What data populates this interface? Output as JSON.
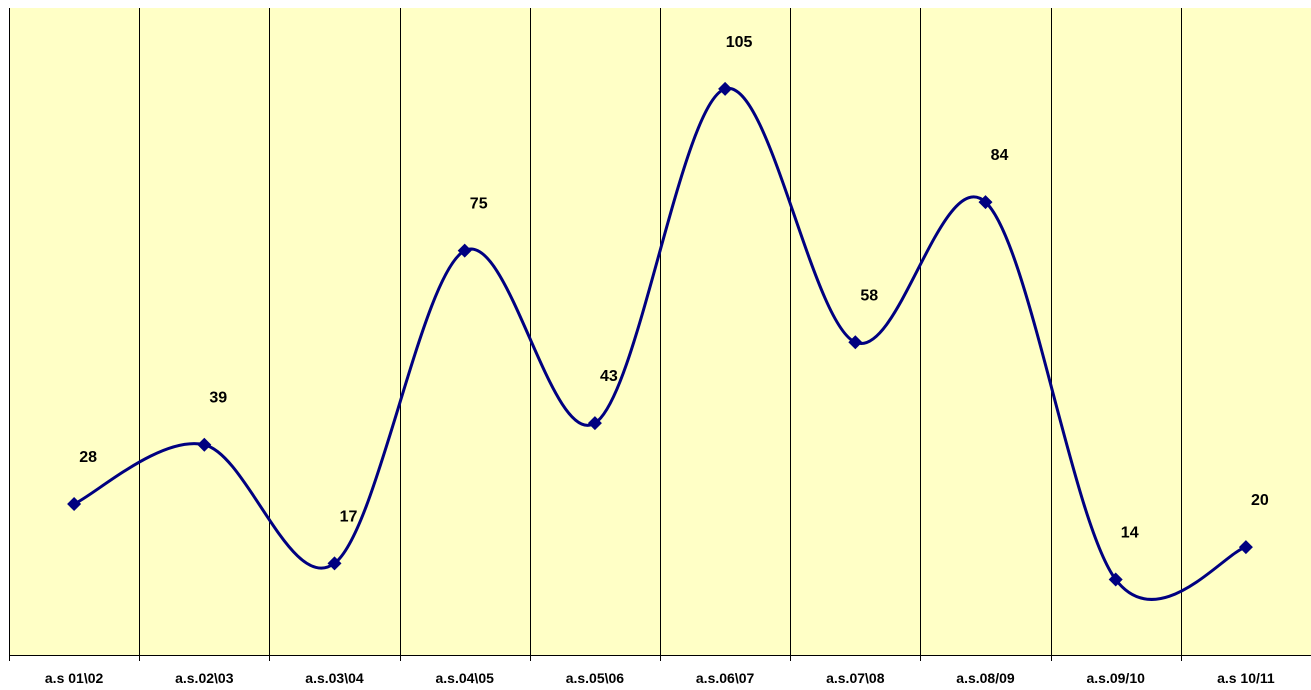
{
  "chart_data": {
    "type": "line",
    "categories": [
      "a.s 01\\02",
      "a.s.02\\03",
      "a.s.03\\04",
      "a.s.04\\05",
      "a.s.05\\06",
      "a.s.06\\07",
      "a.s.07\\08",
      "a.s.08/09",
      "a.s.09/10",
      "a.s 10/11"
    ],
    "series": [
      {
        "values": [
          28,
          39,
          17,
          75,
          43,
          105,
          58,
          84,
          14,
          20
        ]
      }
    ],
    "title": "",
    "xlabel": "",
    "ylabel": "",
    "ylim": [
      0,
      120
    ],
    "smooth": true,
    "marker": "diamond",
    "data_labels": true,
    "grid": "vertical",
    "legend": "none",
    "colors": {
      "plot_background": "#FFFFC6",
      "line": "#000080",
      "marker": "#000080",
      "grid": "#000000"
    }
  }
}
